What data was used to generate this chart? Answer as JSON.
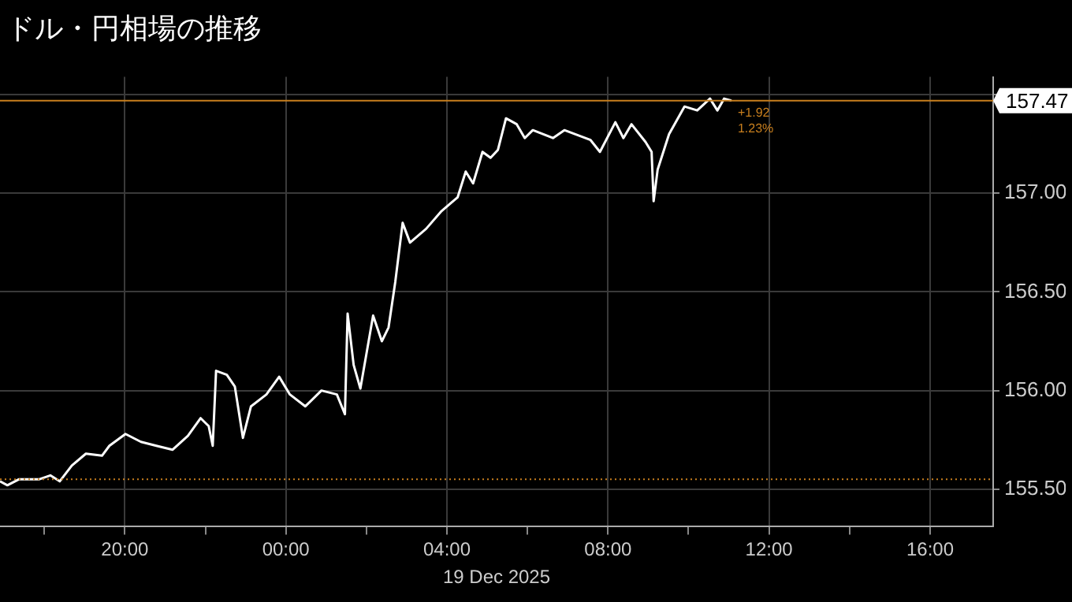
{
  "chart_data": {
    "type": "line",
    "title": "ドル・円相場の推移",
    "xlabel": "19 Dec 2025",
    "x": [
      "2025-12-18T16:54",
      "2025-12-18T17:05",
      "2025-12-18T17:22",
      "2025-12-18T17:52",
      "2025-12-18T18:09",
      "2025-12-18T18:23",
      "2025-12-18T18:32",
      "2025-12-18T18:41",
      "2025-12-18T19:02",
      "2025-12-18T19:26",
      "2025-12-18T19:37",
      "2025-12-18T20:01",
      "2025-12-18T20:24",
      "2025-12-18T20:47",
      "2025-12-18T21:11",
      "2025-12-18T21:34",
      "2025-12-18T21:53",
      "2025-12-18T22:05",
      "2025-12-18T22:11",
      "2025-12-18T22:16",
      "2025-12-18T22:32",
      "2025-12-18T22:44",
      "2025-12-18T22:56",
      "2025-12-18T23:08",
      "2025-12-18T23:31",
      "2025-12-18T23:50",
      "2025-12-19T00:06",
      "2025-12-19T00:29",
      "2025-12-19T00:53",
      "2025-12-19T01:16",
      "2025-12-19T01:28",
      "2025-12-19T01:32",
      "2025-12-19T01:41",
      "2025-12-19T01:51",
      "2025-12-19T02:10",
      "2025-12-19T02:23",
      "2025-12-19T02:33",
      "2025-12-19T02:43",
      "2025-12-19T02:54",
      "2025-12-19T03:05",
      "2025-12-19T03:29",
      "2025-12-19T03:52",
      "2025-12-19T04:16",
      "2025-12-19T04:28",
      "2025-12-19T04:39",
      "2025-12-19T04:53",
      "2025-12-19T05:05",
      "2025-12-19T05:16",
      "2025-12-19T05:28",
      "2025-12-19T05:44",
      "2025-12-19T05:56",
      "2025-12-19T06:08",
      "2025-12-19T06:38",
      "2025-12-19T06:55",
      "2025-12-19T07:34",
      "2025-12-19T07:48",
      "2025-12-19T08:11",
      "2025-12-19T08:23",
      "2025-12-19T08:35",
      "2025-12-19T08:56",
      "2025-12-19T09:05",
      "2025-12-19T09:08",
      "2025-12-19T09:14",
      "2025-12-19T09:31",
      "2025-12-19T09:54",
      "2025-12-19T10:13",
      "2025-12-19T10:32",
      "2025-12-19T10:43",
      "2025-12-19T10:53",
      "2025-12-19T11:04"
    ],
    "series": [
      {
        "color": "#ffffff",
        "values": [
          155.54,
          155.52,
          155.55,
          155.55,
          155.57,
          155.54,
          155.58,
          155.62,
          155.68,
          155.67,
          155.72,
          155.78,
          155.74,
          155.72,
          155.7,
          155.77,
          155.86,
          155.82,
          155.72,
          156.1,
          156.08,
          156.02,
          155.76,
          155.92,
          155.98,
          156.07,
          155.98,
          155.92,
          156.0,
          155.98,
          155.88,
          156.39,
          156.13,
          156.01,
          156.38,
          156.25,
          156.32,
          156.55,
          156.85,
          156.75,
          156.82,
          156.91,
          156.98,
          157.11,
          157.05,
          157.21,
          157.18,
          157.22,
          157.38,
          157.35,
          157.28,
          157.32,
          157.28,
          157.32,
          157.27,
          157.21,
          157.36,
          157.28,
          157.35,
          157.26,
          157.21,
          156.96,
          157.12,
          157.3,
          157.44,
          157.42,
          157.48,
          157.42,
          157.48,
          157.47
        ]
      }
    ],
    "xlim": [
      "2025-12-18T16:54",
      "2025-12-19T17:34"
    ],
    "xticks": [
      {
        "value": "2025-12-18T18:00",
        "label": null
      },
      {
        "value": "2025-12-18T20:00",
        "label": "20:00"
      },
      {
        "value": "2025-12-18T22:00",
        "label": null
      },
      {
        "value": "2025-12-19T00:00",
        "label": "00:00"
      },
      {
        "value": "2025-12-19T02:00",
        "label": null
      },
      {
        "value": "2025-12-19T04:00",
        "label": "04:00"
      },
      {
        "value": "2025-12-19T06:00",
        "label": null
      },
      {
        "value": "2025-12-19T08:00",
        "label": "08:00"
      },
      {
        "value": "2025-12-19T10:00",
        "label": null
      },
      {
        "value": "2025-12-19T12:00",
        "label": "12:00"
      },
      {
        "value": "2025-12-19T14:00",
        "label": null
      },
      {
        "value": "2025-12-19T16:00",
        "label": "16:00"
      }
    ],
    "ylim": [
      155.31,
      157.59
    ],
    "yticks": [
      {
        "value": 155.5,
        "label": "155.50"
      },
      {
        "value": 156,
        "label": "156.00"
      },
      {
        "value": 156.5,
        "label": "156.50"
      },
      {
        "value": 157,
        "label": "157.00"
      },
      {
        "value": 157.5,
        "label": null
      }
    ],
    "ref_lines": [
      {
        "axis": "y",
        "value": 155.55,
        "color": "#c87f1e",
        "line_style": "dotted"
      },
      {
        "axis": "y",
        "value": 157.47,
        "label": "157.47",
        "color": "#c87f1e",
        "line_style": "solid"
      }
    ],
    "annotations": [
      "+1.92",
      "1.23%"
    ],
    "grid": true,
    "legend": false,
    "marker": "none",
    "line_style": "solid"
  }
}
